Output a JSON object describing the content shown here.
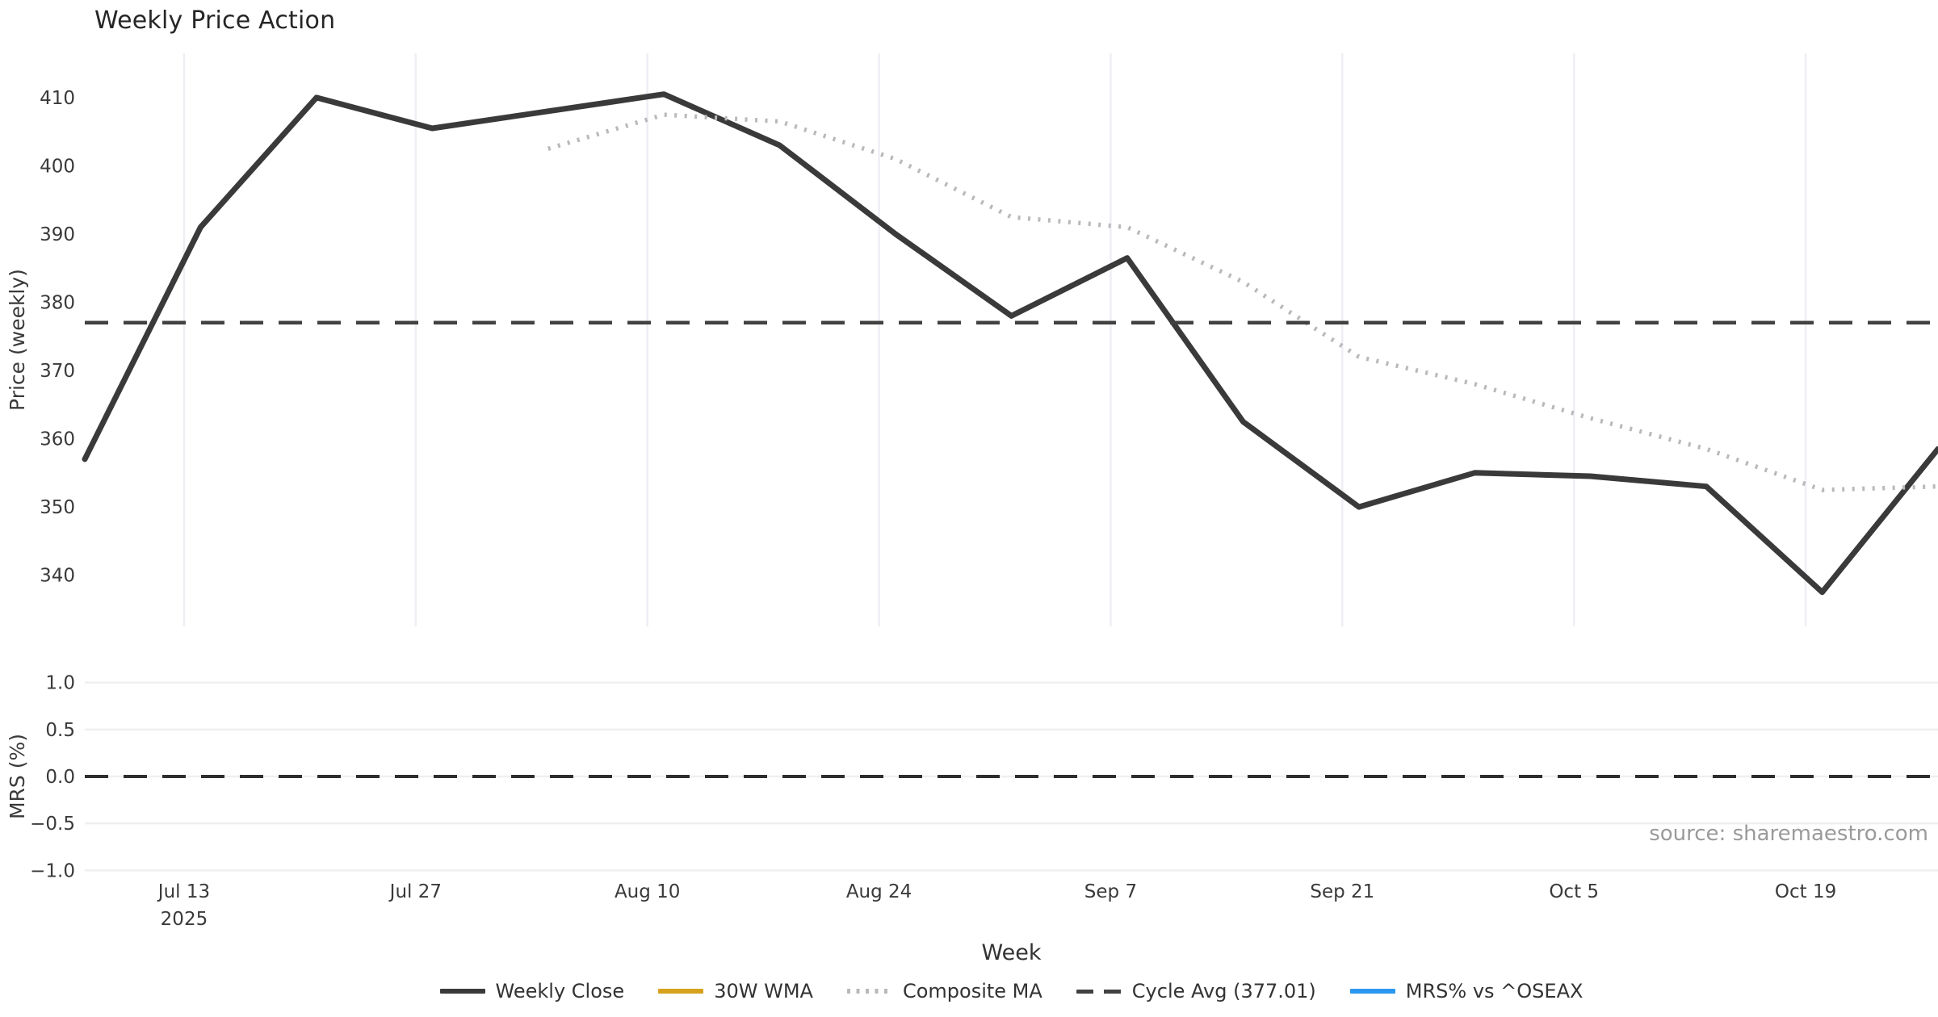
{
  "title": "Weekly Price Action",
  "source_credit": "source: sharemaestro.com",
  "colors": {
    "weekly_close": "#3a3a3a",
    "wma_30w": "#d6a21e",
    "composite_ma": "#b9b9b9",
    "cycle_avg": "#414141",
    "mrs_line": "#2b98f0",
    "zero_line": "#2e2e2e",
    "grid_price": "#edeff4",
    "grid_mrs": "#efefef",
    "tick_text": "#3a3a3a",
    "muted_text": "#9a9a9a"
  },
  "axes": {
    "x_label": "Week",
    "price_axis_label": "Price (weekly)",
    "mrs_axis_label": "MRS (%)",
    "x_ticks": [
      {
        "label": "Jul 13",
        "sublabel": "2025"
      },
      {
        "label": "Jul 27"
      },
      {
        "label": "Aug 10"
      },
      {
        "label": "Aug 24"
      },
      {
        "label": "Sep 7"
      },
      {
        "label": "Sep 21"
      },
      {
        "label": "Oct 5"
      },
      {
        "label": "Oct 19"
      }
    ],
    "price_ticks": [
      "410",
      "400",
      "390",
      "380",
      "370",
      "360",
      "350",
      "340"
    ],
    "mrs_ticks": [
      {
        "label": "1.0",
        "value": 1.0
      },
      {
        "label": "0.5",
        "value": 0.5
      },
      {
        "label": "0.0",
        "value": 0.0
      },
      {
        "label": "−0.5",
        "value": -0.5
      },
      {
        "label": "−1.0",
        "value": -1.0
      }
    ]
  },
  "chart_data": [
    {
      "type": "line",
      "panel": "price",
      "title": "Weekly Price Action",
      "ylabel": "Price (weekly)",
      "xlabel": "Week",
      "x": [
        "Jul 7",
        "Jul 14",
        "Jul 21",
        "Jul 28",
        "Aug 4",
        "Aug 11",
        "Aug 18",
        "Aug 25",
        "Sep 1",
        "Sep 8",
        "Sep 15",
        "Sep 22",
        "Sep 29",
        "Oct 6",
        "Oct 13",
        "Oct 20",
        "Oct 27"
      ],
      "x_year": "2025",
      "ylim": [
        332.5,
        416.5
      ],
      "grid": "vertical",
      "legend_position": "bottom",
      "series": [
        {
          "name": "Weekly Close",
          "style": "solid",
          "color": "#3a3a3a",
          "values": [
            357,
            391,
            410,
            405.5,
            408,
            410.5,
            403,
            390,
            378,
            386.5,
            362.5,
            350,
            355,
            354.5,
            353,
            337.5,
            358.5
          ]
        },
        {
          "name": "30W WMA",
          "style": "solid",
          "color": "#d6a21e",
          "values": [
            null,
            null,
            null,
            null,
            null,
            null,
            null,
            null,
            null,
            null,
            null,
            null,
            null,
            null,
            null,
            null,
            null
          ]
        },
        {
          "name": "Composite MA",
          "style": "dotted",
          "color": "#b9b9b9",
          "values": [
            null,
            null,
            null,
            null,
            402.5,
            407.5,
            406.5,
            401,
            392.5,
            391,
            383,
            372,
            368,
            363,
            358.5,
            352.5,
            353
          ]
        },
        {
          "name": "Cycle Avg (377.01)",
          "style": "dashed",
          "color": "#414141",
          "constant": 377.01
        }
      ]
    },
    {
      "type": "line",
      "panel": "mrs",
      "ylabel": "MRS (%)",
      "ylim": [
        -1.1,
        1.1
      ],
      "grid": "horizontal",
      "series": [
        {
          "name": "MRS% vs ^OSEAX",
          "style": "solid",
          "color": "#2b98f0",
          "values": [
            null,
            null,
            null,
            null,
            null,
            null,
            null,
            null,
            null,
            null,
            null,
            null,
            null,
            null,
            null,
            null,
            null
          ]
        },
        {
          "name": "Zero line",
          "style": "dashed",
          "color": "#2e2e2e",
          "constant": 0.0
        }
      ]
    }
  ],
  "legend": [
    {
      "label": "Weekly Close",
      "color": "#3a3a3a",
      "style": "solid"
    },
    {
      "label": "30W WMA",
      "color": "#d6a21e",
      "style": "solid"
    },
    {
      "label": "Composite MA",
      "color": "#b9b9b9",
      "style": "dotted"
    },
    {
      "label": "Cycle Avg (377.01)",
      "color": "#414141",
      "style": "dashed"
    },
    {
      "label": "MRS% vs ^OSEAX",
      "color": "#2b98f0",
      "style": "solid"
    }
  ]
}
